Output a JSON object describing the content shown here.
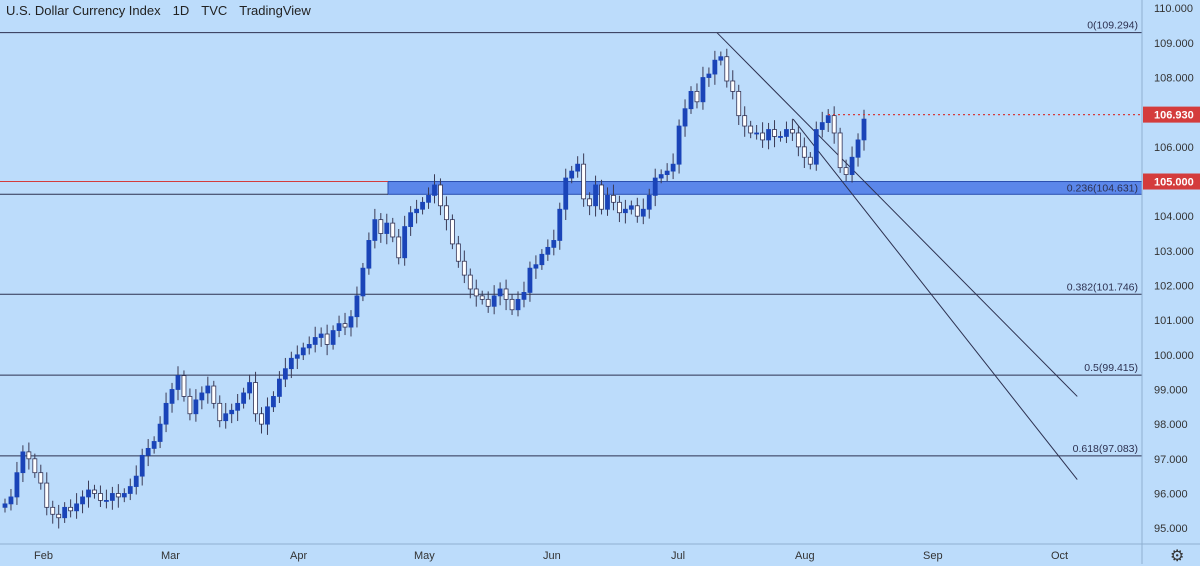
{
  "header": {
    "symbol_name": "U.S. Dollar Currency Index",
    "interval": "1D",
    "exchange": "TVC",
    "platform": "TradingView"
  },
  "colors": {
    "background": "#bcdcfb",
    "up_candle": "#1a44b8",
    "down_candle_fill": "#ffffff",
    "wick": "#3a3a55",
    "horizontal_line": "#2d3150",
    "zone": "#4a78e6",
    "red_level": "#d43c3c"
  },
  "chart_data": {
    "type": "candlestick",
    "x_tick_labels": [
      "Feb",
      "Mar",
      "Apr",
      "May",
      "Jun",
      "Jul",
      "Aug",
      "Sep",
      "Oct"
    ],
    "y_tick_labels": [
      "95.000",
      "96.000",
      "97.000",
      "98.000",
      "99.000",
      "100.000",
      "101.000",
      "102.000",
      "103.000",
      "104.000",
      "105.000",
      "106.000",
      "107.000",
      "108.000",
      "109.000",
      "110.000"
    ],
    "ylim": [
      94.6,
      110.15
    ],
    "grid": false,
    "fib_levels": [
      {
        "label": "0(109.294)",
        "value": 109.294
      },
      {
        "label": "0.236(104.631)",
        "value": 104.631
      },
      {
        "label": "0.382(101.746)",
        "value": 101.746
      },
      {
        "label": "0.5(99.415)",
        "value": 99.415
      },
      {
        "label": "0.618(97.083)",
        "value": 97.083
      }
    ],
    "zone": {
      "low": 104.631,
      "high": 105.0
    },
    "price_badges": [
      {
        "label": "106.930",
        "value": 106.93,
        "color": "#d43c3c"
      },
      {
        "label": "105.000",
        "value": 105.0,
        "color": "#d43c3c"
      }
    ],
    "channel_lines": [
      {
        "from": {
          "date": "2022-07-14",
          "value": 109.294
        },
        "to": {
          "date": "2022-10-09",
          "value": 98.8
        }
      },
      {
        "from": {
          "date": "2022-08-02",
          "value": 106.8
        },
        "to": {
          "date": "2022-10-09",
          "value": 96.4
        }
      }
    ],
    "closes": [
      95.7,
      95.9,
      96.6,
      97.2,
      97.0,
      96.6,
      96.3,
      95.6,
      95.4,
      95.3,
      95.6,
      95.5,
      95.7,
      95.9,
      96.1,
      96.0,
      95.8,
      95.8,
      96.0,
      95.9,
      96.0,
      96.2,
      96.5,
      97.1,
      97.3,
      97.5,
      98.0,
      98.6,
      99.0,
      99.4,
      98.8,
      98.3,
      98.7,
      98.9,
      99.1,
      98.6,
      98.1,
      98.3,
      98.4,
      98.6,
      98.9,
      99.2,
      98.3,
      98.0,
      98.5,
      98.8,
      99.3,
      99.6,
      99.9,
      100.0,
      100.2,
      100.3,
      100.5,
      100.6,
      100.3,
      100.7,
      100.9,
      100.8,
      101.1,
      101.7,
      102.5,
      103.3,
      103.9,
      103.5,
      103.8,
      103.4,
      102.8,
      103.7,
      104.1,
      104.2,
      104.4,
      104.6,
      104.9,
      104.3,
      103.9,
      103.2,
      102.7,
      102.3,
      101.9,
      101.7,
      101.6,
      101.4,
      101.7,
      101.9,
      101.6,
      101.3,
      101.6,
      101.8,
      102.5,
      102.6,
      102.9,
      103.1,
      103.3,
      104.2,
      105.1,
      105.3,
      105.5,
      104.5,
      104.3,
      104.9,
      104.2,
      104.6,
      104.4,
      104.1,
      104.2,
      104.3,
      104.0,
      104.2,
      104.6,
      105.1,
      105.2,
      105.3,
      105.5,
      106.6,
      107.1,
      107.6,
      107.3,
      108.0,
      108.1,
      108.5,
      108.6,
      107.9,
      107.6,
      106.9,
      106.6,
      106.4,
      106.4,
      106.2,
      106.5,
      106.3,
      106.3,
      106.5,
      106.4,
      106.0,
      105.7,
      105.5,
      106.5,
      106.7,
      106.9,
      106.4,
      105.4,
      105.2,
      105.7,
      106.2,
      106.8
    ],
    "current_price": 106.93
  }
}
